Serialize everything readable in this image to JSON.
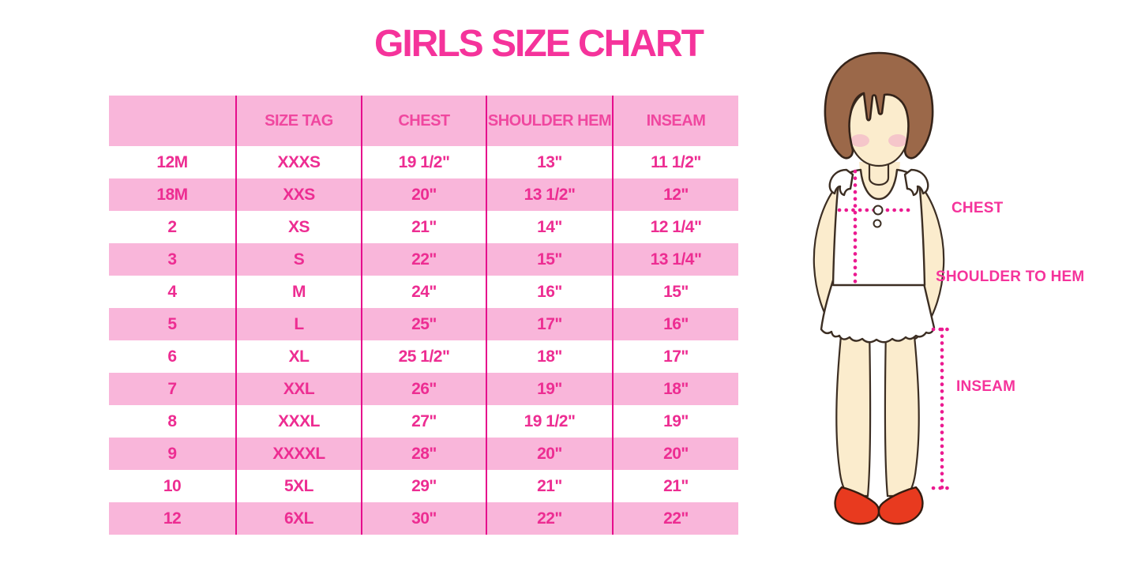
{
  "title": "GIRLS SIZE CHART",
  "colors": {
    "bg": "#ffffff",
    "hot-pink": "#F5339B",
    "pink-fill": "#F9B6DA",
    "magenta-line": "#E60D8C",
    "header-text": "#F0479F",
    "cell-text": "#ED2D92",
    "dot-pink": "#EB1A90",
    "hair": "#9B6849",
    "hair-outline": "#35241A",
    "skin": "#FBECCD",
    "outline": "#3C2E23",
    "blush": "#F3B9C8",
    "shoe": "#E83A1F",
    "shoe-outline": "#351C10"
  },
  "chart_data": {
    "type": "table",
    "title": "GIRLS SIZE CHART",
    "columns": [
      "",
      "SIZE TAG",
      "CHEST",
      "SHOULDER HEM",
      "INSEAM"
    ],
    "rows": [
      [
        "12M",
        "XXXS",
        "19 1/2\"",
        "13\"",
        "11 1/2\""
      ],
      [
        "18M",
        "XXS",
        "20\"",
        "13 1/2\"",
        "12\""
      ],
      [
        "2",
        "XS",
        "21\"",
        "14\"",
        "12 1/4\""
      ],
      [
        "3",
        "S",
        "22\"",
        "15\"",
        "13 1/4\""
      ],
      [
        "4",
        "M",
        "24\"",
        "16\"",
        "15\""
      ],
      [
        "5",
        "L",
        "25\"",
        "17\"",
        "16\""
      ],
      [
        "6",
        "XL",
        "25 1/2\"",
        "18\"",
        "17\""
      ],
      [
        "7",
        "XXL",
        "26\"",
        "19\"",
        "18\""
      ],
      [
        "8",
        "XXXL",
        "27\"",
        "19 1/2\"",
        "19\""
      ],
      [
        "9",
        "XXXXL",
        "28\"",
        "20\"",
        "20\""
      ],
      [
        "10",
        "5XL",
        "29\"",
        "21\"",
        "21\""
      ],
      [
        "12",
        "6XL",
        "30\"",
        "22\"",
        "22\""
      ]
    ],
    "row_style": "alternating white/pink starting white, pink header band, magenta column separators"
  },
  "figure": {
    "chest_label": "CHEST",
    "shoulder_to_hem_label": "SHOULDER TO HEM",
    "inseam_label": "INSEAM"
  }
}
